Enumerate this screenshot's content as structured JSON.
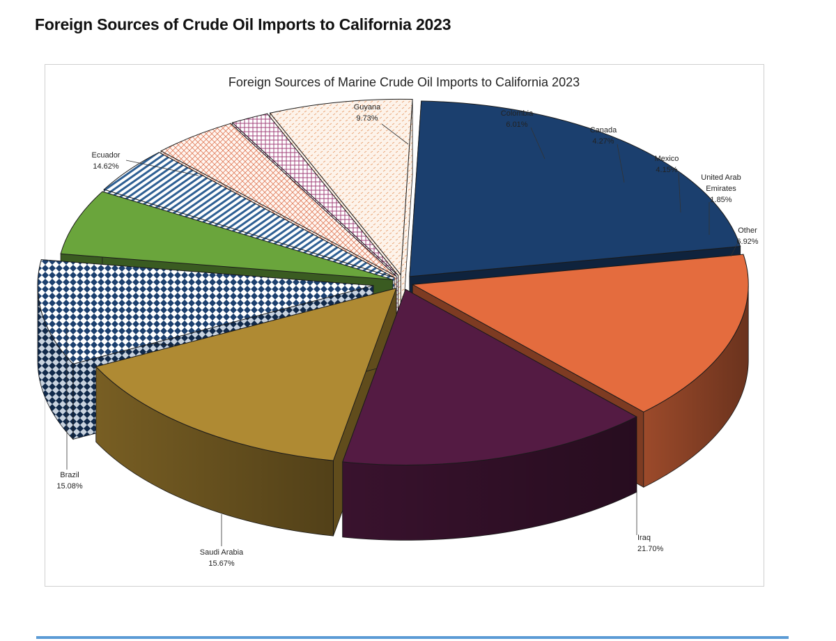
{
  "page": {
    "title": "Foreign Sources of Crude Oil Imports to California 2023"
  },
  "chart_data": {
    "type": "pie",
    "title": "Foreign Sources of Marine Crude Oil Imports to California 2023",
    "style": "3d-exploded",
    "slices": [
      {
        "name": "Iraq",
        "lines": [
          "Iraq"
        ],
        "value": 21.7,
        "label": "21.70%",
        "color": "#1b3f6e",
        "pattern": "solid"
      },
      {
        "name": "Saudi Arabia",
        "lines": [
          "Saudi Arabia"
        ],
        "value": 15.67,
        "label": "15.67%",
        "color": "#e46c3e",
        "pattern": "solid"
      },
      {
        "name": "Brazil",
        "lines": [
          "Brazil"
        ],
        "value": 15.08,
        "label": "15.08%",
        "color": "#541b43",
        "pattern": "solid"
      },
      {
        "name": "Ecuador",
        "lines": [
          "Ecuador"
        ],
        "value": 14.62,
        "label": "14.62%",
        "color": "#af8a33",
        "pattern": "solid"
      },
      {
        "name": "Guyana",
        "lines": [
          "Guyana"
        ],
        "value": 9.73,
        "label": "9.73%",
        "color": "#1b3f6e",
        "pattern": "diamond"
      },
      {
        "name": "Colombia",
        "lines": [
          "Colombia"
        ],
        "value": 6.01,
        "label": "6.01%",
        "color": "#6aa53c",
        "pattern": "solid"
      },
      {
        "name": "Canada",
        "lines": [
          "Canada"
        ],
        "value": 4.27,
        "label": "4.27%",
        "color": "#2e5f93",
        "pattern": "stripe"
      },
      {
        "name": "Mexico",
        "lines": [
          "Mexico"
        ],
        "value": 4.15,
        "label": "4.15%",
        "color": "#e07a58",
        "pattern": "crosshatch"
      },
      {
        "name": "United Arab Emirates",
        "lines": [
          "United Arab",
          "Emirates"
        ],
        "value": 1.85,
        "label": "1.85%",
        "color": "#a0407a",
        "pattern": "grid"
      },
      {
        "name": "Other",
        "lines": [
          "Other"
        ],
        "value": 6.92,
        "label": "6.92%",
        "color": "#e8a070",
        "pattern": "dots"
      }
    ],
    "legend": "none",
    "data_labels": "outside-with-leader-lines"
  }
}
